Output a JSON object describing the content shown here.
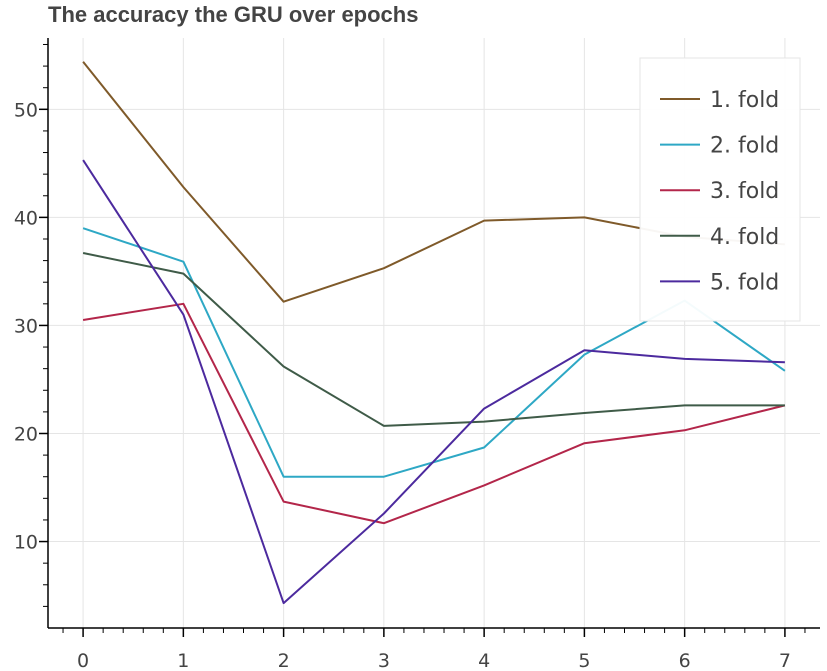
{
  "chart_data": {
    "type": "line",
    "title": "The accuracy the GRU over epochs",
    "xlabel": "",
    "ylabel": "",
    "x": [
      0,
      1,
      2,
      3,
      4,
      5,
      6,
      7
    ],
    "xlim": [
      -0.35,
      7.35
    ],
    "ylim": [
      2,
      56.6
    ],
    "x_ticks": [
      0,
      1,
      2,
      3,
      4,
      5,
      6,
      7
    ],
    "y_ticks": [
      10,
      20,
      30,
      40,
      50
    ],
    "grid": true,
    "legend_position": "top-right",
    "series": [
      {
        "name": "1. fold",
        "color": "#7f5a2a",
        "values": [
          54.4,
          42.8,
          32.2,
          35.3,
          39.7,
          40.0,
          38.2,
          37.5
        ]
      },
      {
        "name": "2. fold",
        "color": "#2ea8c5",
        "values": [
          39.0,
          35.9,
          16.0,
          16.0,
          18.7,
          27.3,
          32.3,
          25.8
        ]
      },
      {
        "name": "3. fold",
        "color": "#b3264a",
        "values": [
          30.5,
          32.0,
          13.7,
          11.7,
          15.2,
          19.1,
          20.3,
          22.6
        ]
      },
      {
        "name": "4. fold",
        "color": "#3f5b48",
        "values": [
          36.7,
          34.8,
          26.2,
          20.7,
          21.1,
          21.9,
          22.6,
          22.6
        ]
      },
      {
        "name": "5. fold",
        "color": "#4c2a9e",
        "values": [
          45.3,
          31.0,
          4.3,
          12.6,
          22.3,
          27.7,
          26.9,
          26.6
        ]
      }
    ]
  }
}
